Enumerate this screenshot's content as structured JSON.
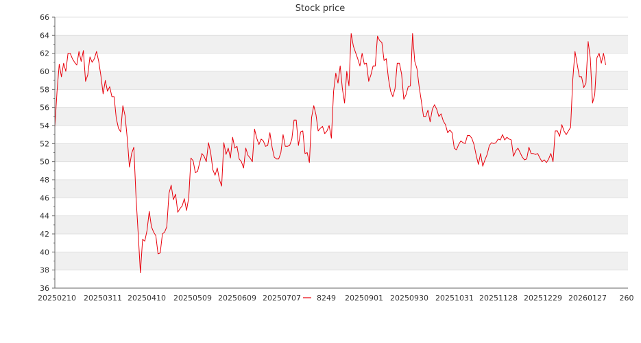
{
  "chart_data": {
    "type": "line",
    "title": "Stock price",
    "xlabel": "",
    "ylabel": "",
    "ylim": [
      36,
      66
    ],
    "y_ticks": [
      36,
      38,
      40,
      42,
      44,
      46,
      48,
      50,
      52,
      54,
      56,
      58,
      60,
      62,
      64,
      66
    ],
    "x_tick_labels": [
      "20250210",
      "20250311",
      "20250410",
      "20250509",
      "20250609",
      "20250707",
      "20250901",
      "20250930",
      "20251031",
      "20251128",
      "20251229",
      "20260127",
      "260"
    ],
    "grid": "horizontal alternating bands",
    "legend_position": "bottom",
    "series": [
      {
        "name": "8249",
        "color": "#e8000b",
        "values": [
          53.8,
          57.8,
          60.8,
          59.4,
          60.9,
          60.0,
          62.0,
          62.0,
          61.4,
          61.0,
          60.7,
          62.2,
          61.1,
          62.3,
          58.9,
          59.6,
          61.6,
          61.0,
          61.4,
          62.2,
          61.1,
          59.5,
          57.5,
          59.0,
          57.8,
          58.3,
          57.2,
          57.2,
          54.8,
          53.7,
          53.3,
          56.2,
          55.1,
          52.6,
          49.4,
          50.9,
          51.6,
          46.1,
          42.0,
          37.7,
          41.4,
          41.2,
          42.4,
          44.5,
          42.8,
          42.2,
          41.8,
          39.8,
          39.9,
          42.0,
          42.2,
          42.8,
          46.5,
          47.4,
          45.8,
          46.4,
          44.4,
          44.8,
          45.1,
          45.9,
          44.6,
          46.0,
          50.4,
          50.1,
          48.8,
          48.9,
          49.9,
          50.9,
          50.6,
          50.0,
          52.1,
          51.0,
          49.1,
          48.5,
          49.3,
          48.0,
          47.3,
          52.1,
          50.8,
          51.5,
          50.4,
          52.7,
          51.5,
          51.7,
          50.3,
          50.0,
          49.3,
          51.5,
          50.7,
          50.4,
          50.0,
          53.6,
          52.6,
          51.9,
          52.5,
          52.3,
          51.7,
          51.8,
          53.2,
          51.6,
          50.5,
          50.3,
          50.3,
          51.0,
          53.0,
          51.7,
          51.7,
          51.8,
          52.5,
          54.6,
          54.6,
          51.8,
          53.3,
          53.4,
          50.9,
          51.0,
          49.9,
          54.9,
          56.2,
          55.2,
          53.4,
          53.7,
          53.9,
          53.1,
          53.4,
          54.0,
          52.6,
          57.8,
          59.8,
          58.7,
          60.6,
          58.1,
          56.5,
          60.0,
          58.4,
          64.2,
          62.8,
          62.1,
          61.4,
          60.6,
          62.0,
          60.8,
          60.9,
          58.9,
          59.6,
          60.6,
          60.6,
          63.9,
          63.4,
          63.2,
          61.2,
          61.4,
          59.2,
          57.8,
          57.2,
          58.1,
          60.9,
          60.9,
          59.7,
          56.9,
          57.4,
          58.3,
          58.4,
          64.2,
          61.1,
          60.3,
          58.3,
          56.7,
          55.0,
          55.0,
          55.7,
          54.4,
          55.8,
          56.3,
          55.8,
          55.0,
          55.3,
          54.5,
          54.1,
          53.2,
          53.5,
          53.2,
          51.5,
          51.3,
          51.9,
          52.3,
          52.1,
          52.0,
          52.9,
          52.9,
          52.6,
          51.9,
          50.7,
          49.7,
          50.9,
          49.5,
          50.2,
          50.8,
          51.8,
          52.1,
          52.0,
          52.1,
          52.5,
          52.4,
          53.0,
          52.4,
          52.7,
          52.5,
          52.4,
          50.6,
          51.2,
          51.5,
          51.0,
          50.5,
          50.2,
          50.3,
          51.6,
          50.9,
          50.9,
          50.8,
          50.9,
          50.4,
          50.0,
          50.2,
          49.9,
          50.3,
          50.9,
          50.0,
          53.4,
          53.4,
          52.8,
          54.1,
          53.4,
          53.0,
          53.4,
          53.8,
          59.1,
          62.2,
          60.8,
          59.4,
          59.4,
          58.2,
          58.7,
          63.3,
          61.4,
          56.5,
          57.4,
          61.5,
          62.0,
          60.9,
          62.0,
          60.7
        ]
      }
    ]
  }
}
